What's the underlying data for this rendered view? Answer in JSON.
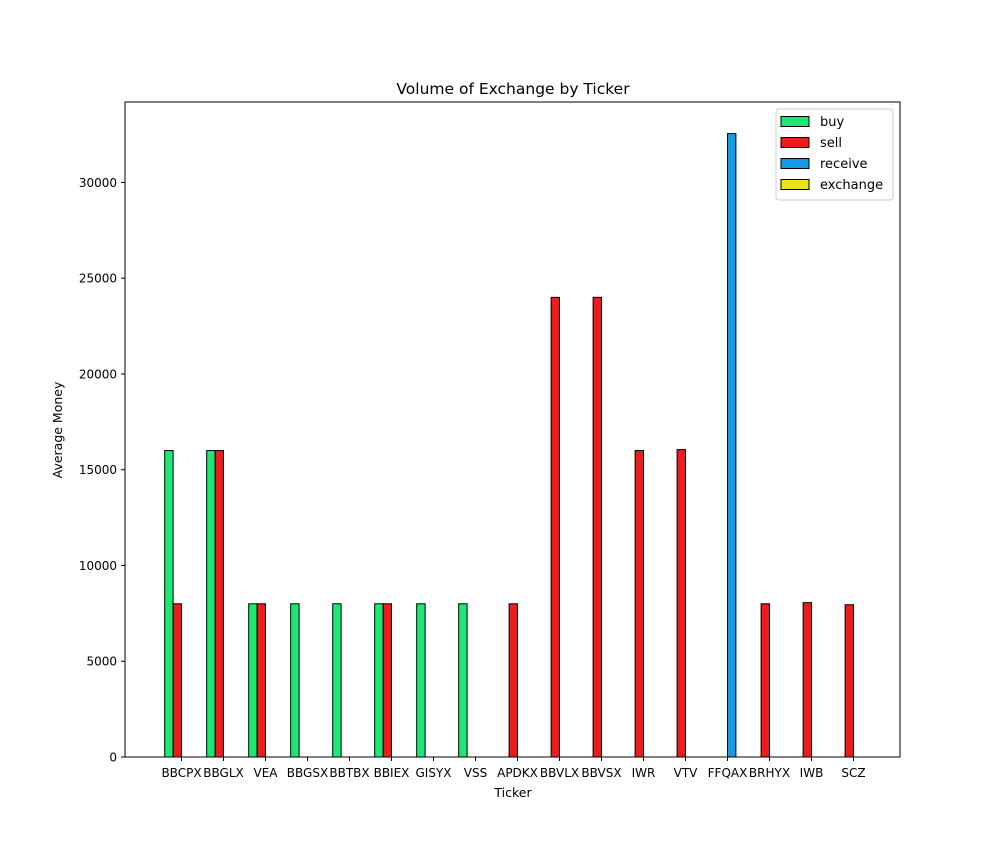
{
  "chart_data": {
    "type": "bar",
    "title": "Volume of Exchange by Ticker",
    "xlabel": "Ticker",
    "ylabel": "Average Money",
    "ylim": [
      0,
      34200
    ],
    "yticks": [
      0,
      5000,
      10000,
      15000,
      20000,
      25000,
      30000
    ],
    "categories": [
      "BBCPX",
      "BBGLX",
      "VEA",
      "BBGSX",
      "BBTBX",
      "BBIEX",
      "GISYX",
      "VSS",
      "APDKX",
      "BBVLX",
      "BBVSX",
      "IWR",
      "VTV",
      "FFQAX",
      "BRHYX",
      "IWB",
      "SCZ"
    ],
    "series": [
      {
        "name": "buy",
        "color": "#1ee873",
        "values": [
          16000,
          16000,
          8000,
          8000,
          8000,
          8000,
          8000,
          8000,
          0,
          0,
          0,
          0,
          0,
          0,
          0,
          0,
          0
        ]
      },
      {
        "name": "sell",
        "color": "#ee1c1c",
        "values": [
          8000,
          16000,
          8000,
          0,
          0,
          8000,
          0,
          0,
          8000,
          24000,
          24000,
          16000,
          16050,
          0,
          8000,
          8060,
          7950
        ]
      },
      {
        "name": "receive",
        "color": "#169be8",
        "values": [
          0,
          0,
          0,
          0,
          0,
          0,
          0,
          0,
          0,
          0,
          0,
          0,
          0,
          32550,
          0,
          0,
          0
        ]
      },
      {
        "name": "exchange",
        "color": "#e8e41e",
        "values": [
          0,
          0,
          0,
          0,
          0,
          0,
          0,
          0,
          0,
          0,
          0,
          0,
          0,
          0,
          0,
          0,
          0
        ]
      }
    ],
    "legend": "top-right",
    "grid": false
  }
}
